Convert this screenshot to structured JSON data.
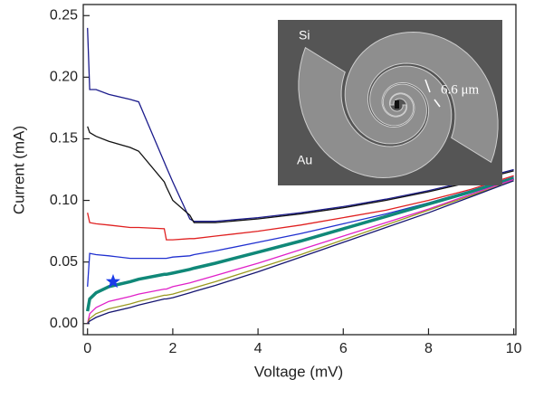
{
  "chart_data": {
    "type": "line",
    "xlabel": "Voltage (mV)",
    "ylabel": "Current (mA)",
    "xlim": [
      -0.1,
      10.05
    ],
    "ylim": [
      -0.009,
      0.259
    ],
    "xticks": [
      0,
      2,
      4,
      6,
      8,
      10
    ],
    "yticks": [
      {
        "value": 0,
        "label": "0.00"
      },
      0.05,
      {
        "value": 0.1,
        "label": "0.10"
      },
      0.15,
      {
        "value": 0.2,
        "label": "0.20"
      },
      0.25
    ],
    "x": [
      0,
      0.05,
      0.2,
      0.5,
      1,
      1.2,
      1.8,
      1.85,
      2,
      2.4,
      2.5,
      3,
      4,
      5,
      6,
      7,
      8,
      9,
      10
    ],
    "series": [
      {
        "color": "#1c1c8c",
        "values": [
          0.24,
          0.19,
          0.19,
          0.186,
          0.182,
          0.18,
          0.131,
          0.127,
          0.115,
          0.085,
          0.083,
          0.083,
          0.086,
          0.09,
          0.095,
          0.101,
          0.108,
          0.116,
          0.125
        ]
      },
      {
        "color": "#111111",
        "values": [
          0.16,
          0.155,
          0.152,
          0.148,
          0.143,
          0.14,
          0.115,
          0.111,
          0.1,
          0.088,
          0.082,
          0.082,
          0.085,
          0.089,
          0.094,
          0.1,
          0.107,
          0.115,
          0.124
        ]
      },
      {
        "color": "#e02020",
        "values": [
          0.09,
          0.082,
          0.081,
          0.08,
          0.078,
          0.078,
          0.077,
          0.068,
          0.068,
          0.069,
          0.069,
          0.071,
          0.075,
          0.08,
          0.086,
          0.092,
          0.1,
          0.109,
          0.12
        ]
      },
      {
        "color": "#2030d0",
        "values": [
          0.03,
          0.057,
          0.056,
          0.055,
          0.053,
          0.053,
          0.053,
          0.053,
          0.054,
          0.055,
          0.056,
          0.059,
          0.066,
          0.073,
          0.081,
          0.089,
          0.098,
          0.108,
          0.119
        ]
      },
      {
        "color": "#108878",
        "values": [
          0.01,
          0.02,
          0.025,
          0.03,
          0.034,
          0.036,
          0.04,
          0.04,
          0.041,
          0.044,
          0.045,
          0.049,
          0.058,
          0.067,
          0.077,
          0.087,
          0.097,
          0.107,
          0.118
        ]
      },
      {
        "color": "#e020c8",
        "values": [
          0,
          0.008,
          0.013,
          0.018,
          0.022,
          0.024,
          0.028,
          0.028,
          0.03,
          0.033,
          0.034,
          0.039,
          0.049,
          0.06,
          0.071,
          0.082,
          0.093,
          0.105,
          0.117
        ]
      },
      {
        "color": "#9a9a20",
        "values": [
          0,
          0.004,
          0.008,
          0.012,
          0.016,
          0.018,
          0.023,
          0.023,
          0.024,
          0.028,
          0.029,
          0.034,
          0.045,
          0.056,
          0.068,
          0.08,
          0.092,
          0.104,
          0.116
        ]
      },
      {
        "color": "#141470",
        "values": [
          0,
          0.002,
          0.005,
          0.009,
          0.013,
          0.015,
          0.02,
          0.02,
          0.021,
          0.025,
          0.026,
          0.031,
          0.042,
          0.054,
          0.066,
          0.078,
          0.09,
          0.103,
          0.116
        ]
      }
    ],
    "star": {
      "x": 0.6,
      "y": 0.034,
      "color": "#1a3be8"
    },
    "inset": {
      "labels": [
        "Si",
        "Au",
        "6.6 μm"
      ]
    }
  }
}
